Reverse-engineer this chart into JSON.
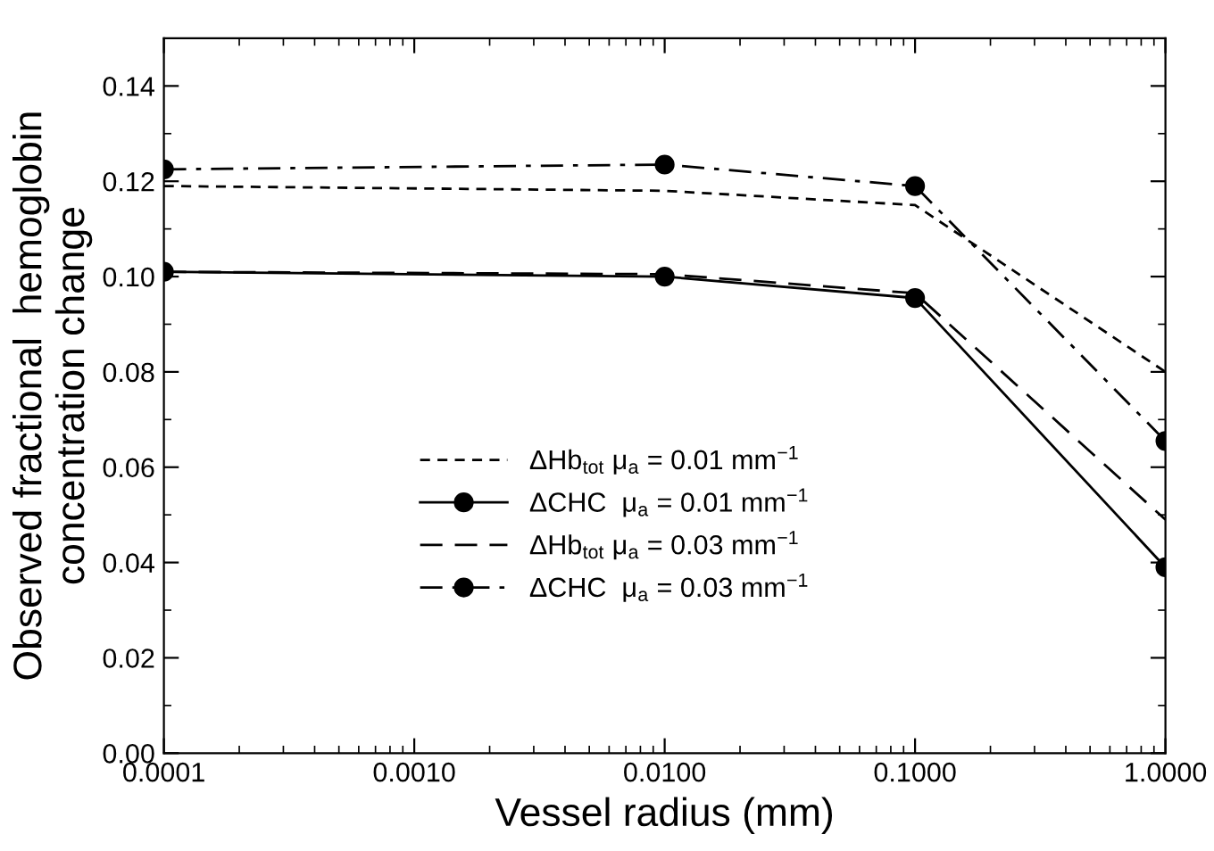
{
  "chart_data": {
    "type": "line",
    "xlabel": "Vessel radius (mm)",
    "ylabel": "Observed fractional  hemoglobin\nconcentration change",
    "log": "x",
    "x": [
      0.0001,
      0.01,
      0.1,
      1.0
    ],
    "xlim": [
      0.0001,
      1.0
    ],
    "xticks": [
      {
        "value": 0.0001,
        "label": "0.0001"
      },
      {
        "value": 0.001,
        "label": "0.0010"
      },
      {
        "value": 0.01,
        "label": "0.0100"
      },
      {
        "value": 0.1,
        "label": "0.1000"
      },
      {
        "value": 1.0,
        "label": "1.0000"
      }
    ],
    "ylim": [
      0,
      0.15
    ],
    "yticks": [
      {
        "value": 0,
        "label": "0.00"
      },
      {
        "value": 0.02,
        "label": "0.02"
      },
      {
        "value": 0.04,
        "label": "0.04"
      },
      {
        "value": 0.06,
        "label": "0.06"
      },
      {
        "value": 0.08,
        "label": "0.08"
      },
      {
        "value": 0.1,
        "label": "0.10"
      },
      {
        "value": 0.12,
        "label": "0.12"
      },
      {
        "value": 0.14,
        "label": "0.14"
      }
    ],
    "grid": false,
    "legend": "center",
    "series": [
      {
        "name": "ΔHb$_{tot}$ μ$_{a}$ = 0.01 mm$^{−1}$",
        "color": "#000000",
        "values": [
          0.119,
          0.118,
          0.115,
          0.08
        ],
        "line_style": "dashed",
        "marker": "none"
      },
      {
        "name": "ΔCHC  μ$_{a}$ = 0.01 mm$^{−1}$",
        "color": "#000000",
        "values": [
          0.101,
          0.1,
          0.0955,
          0.039
        ],
        "line_style": "solid",
        "marker": "circle"
      },
      {
        "name": "ΔHb$_{tot}$ μ$_{a}$ = 0.03 mm$^{−1}$",
        "color": "#000000",
        "values": [
          0.101,
          0.1005,
          0.0965,
          0.049
        ],
        "line_style": "longdash",
        "marker": "none"
      },
      {
        "name": "ΔCHC  μ$_{a}$ = 0.03 mm$^{−1}$",
        "color": "#000000",
        "values": [
          0.1225,
          0.1235,
          0.119,
          0.0655
        ],
        "line_style": "dashdot",
        "marker": "circle"
      }
    ]
  }
}
